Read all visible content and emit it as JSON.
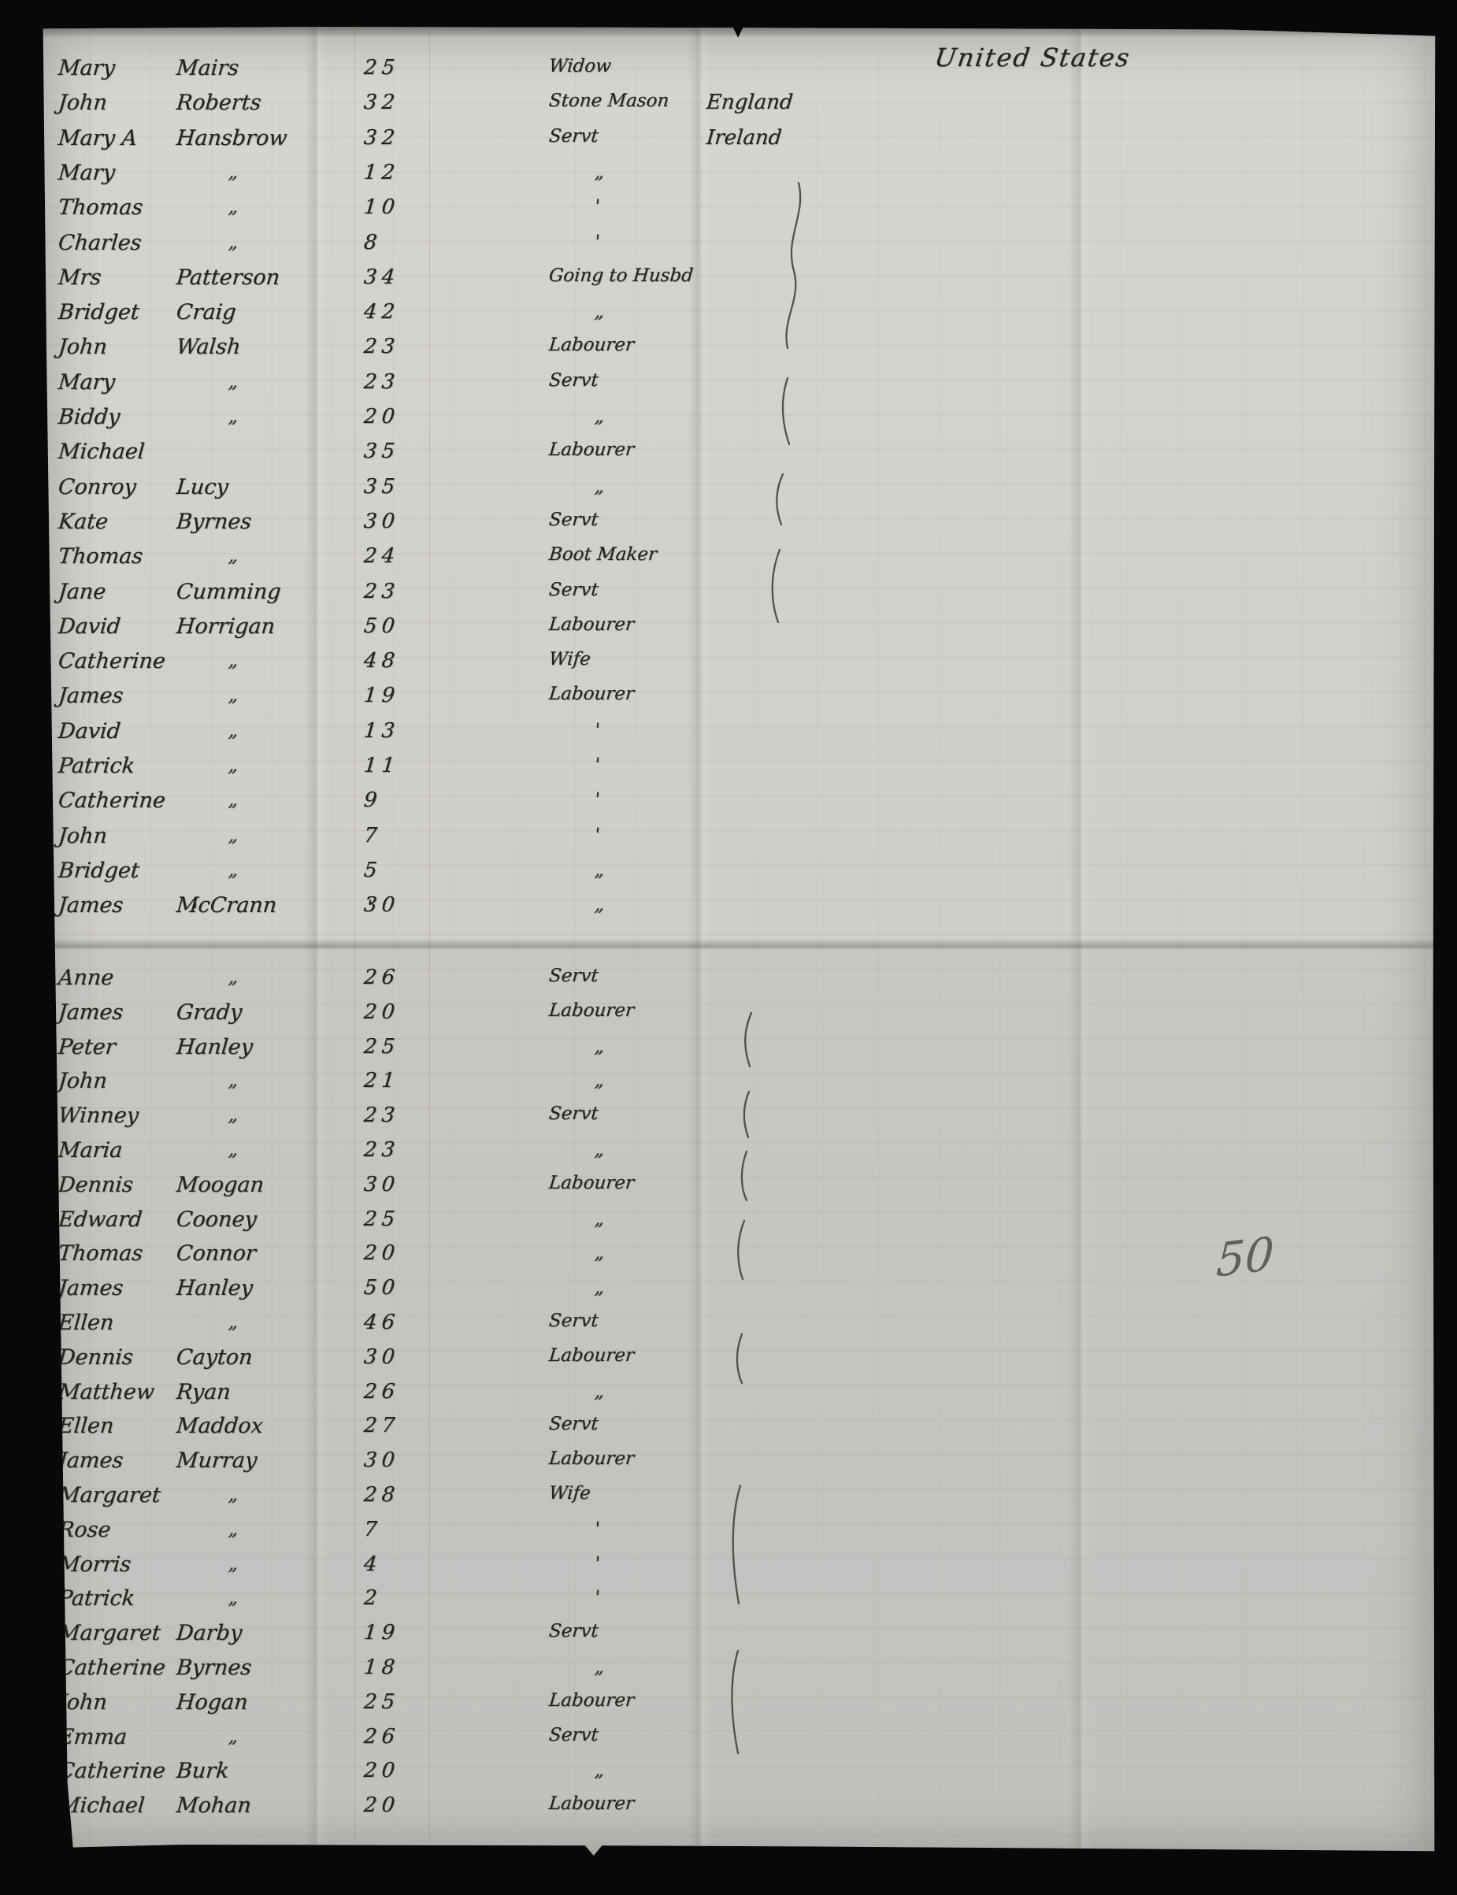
{
  "header": {
    "destination_note": "United States"
  },
  "margin_note": "50",
  "stray_marks": [
    "'",
    "'"
  ],
  "sections": [
    {
      "rows": [
        {
          "given": "Mary",
          "surname": "Mairs",
          "age": "25",
          "occupation": "Widow",
          "country": ""
        },
        {
          "given": "John",
          "surname": "Roberts",
          "age": "32",
          "occupation": "Stone Mason",
          "country": "England"
        },
        {
          "given": "Mary A",
          "surname": "Hansbrow",
          "age": "32",
          "occupation": "Servt",
          "country": "Ireland"
        },
        {
          "given": "Mary",
          "surname": "„",
          "age": "12",
          "occupation": "„",
          "country": ""
        },
        {
          "given": "Thomas",
          "surname": "„",
          "age": "10",
          "occupation": "'",
          "country": ""
        },
        {
          "given": "Charles",
          "surname": "„",
          "age": "8",
          "occupation": "'",
          "country": ""
        },
        {
          "given": "Mrs",
          "surname": "Patterson",
          "age": "34",
          "occupation": "Going to Husbd",
          "country": ""
        },
        {
          "given": "Bridget",
          "surname": "Craig",
          "age": "42",
          "occupation": "„",
          "country": ""
        },
        {
          "given": "John",
          "surname": "Walsh",
          "age": "23",
          "occupation": "Labourer",
          "country": ""
        },
        {
          "given": "Mary",
          "surname": "„",
          "age": "23",
          "occupation": "Servt",
          "country": ""
        },
        {
          "given": "Biddy",
          "surname": "„",
          "age": "20",
          "occupation": "„",
          "country": ""
        },
        {
          "given": "Michael",
          "surname": "",
          "age": "35",
          "occupation": "Labourer",
          "country": ""
        },
        {
          "given": "Conroy",
          "surname": "Lucy",
          "age": "35",
          "occupation": "„",
          "country": ""
        },
        {
          "given": "Kate",
          "surname": "Byrnes",
          "age": "30",
          "occupation": "Servt",
          "country": ""
        },
        {
          "given": "Thomas",
          "surname": "„",
          "age": "24",
          "occupation": "Boot Maker",
          "country": ""
        },
        {
          "given": "Jane",
          "surname": "Cumming",
          "age": "23",
          "occupation": "Servt",
          "country": ""
        },
        {
          "given": "David",
          "surname": "Horrigan",
          "age": "50",
          "occupation": "Labourer",
          "country": ""
        },
        {
          "given": "Catherine",
          "surname": "„",
          "age": "48",
          "occupation": "Wife",
          "country": ""
        },
        {
          "given": "James",
          "surname": "„",
          "age": "19",
          "occupation": "Labourer",
          "country": ""
        },
        {
          "given": "David",
          "surname": "„",
          "age": "13",
          "occupation": "'",
          "country": ""
        },
        {
          "given": "Patrick",
          "surname": "„",
          "age": "11",
          "occupation": "'",
          "country": ""
        },
        {
          "given": "Catherine",
          "surname": "„",
          "age": "9",
          "occupation": "'",
          "country": ""
        },
        {
          "given": "John",
          "surname": "„",
          "age": "7",
          "occupation": "'",
          "country": ""
        },
        {
          "given": "Bridget",
          "surname": "„",
          "age": "5",
          "occupation": "„",
          "country": ""
        },
        {
          "given": "James",
          "surname": "McCrann",
          "age": "30",
          "occupation": "„",
          "country": ""
        }
      ]
    },
    {
      "rows": [
        {
          "given": "Anne",
          "surname": "„",
          "age": "26",
          "occupation": "Servt",
          "country": ""
        },
        {
          "given": "James",
          "surname": "Grady",
          "age": "20",
          "occupation": "Labourer",
          "country": ""
        },
        {
          "given": "Peter",
          "surname": "Hanley",
          "age": "25",
          "occupation": "„",
          "country": ""
        },
        {
          "given": "John",
          "surname": "„",
          "age": "21",
          "occupation": "„",
          "country": ""
        },
        {
          "given": "Winney",
          "surname": "„",
          "age": "23",
          "occupation": "Servt",
          "country": ""
        },
        {
          "given": "Maria",
          "surname": "„",
          "age": "23",
          "occupation": "„",
          "country": ""
        },
        {
          "given": "Dennis",
          "surname": "Moogan",
          "age": "30",
          "occupation": "Labourer",
          "country": ""
        },
        {
          "given": "Edward",
          "surname": "Cooney",
          "age": "25",
          "occupation": "„",
          "country": ""
        },
        {
          "given": "Thomas",
          "surname": "Connor",
          "age": "20",
          "occupation": "„",
          "country": ""
        },
        {
          "given": "James",
          "surname": "Hanley",
          "age": "50",
          "occupation": "„",
          "country": ""
        },
        {
          "given": "Ellen",
          "surname": "„",
          "age": "46",
          "occupation": "Servt",
          "country": ""
        },
        {
          "given": "Dennis",
          "surname": "Cayton",
          "age": "30",
          "occupation": "Labourer",
          "country": ""
        },
        {
          "given": "Matthew",
          "surname": "Ryan",
          "age": "26",
          "occupation": "„",
          "country": ""
        },
        {
          "given": "Ellen",
          "surname": "Maddox",
          "age": "27",
          "occupation": "Servt",
          "country": ""
        },
        {
          "given": "James",
          "surname": "Murray",
          "age": "30",
          "occupation": "Labourer",
          "country": ""
        },
        {
          "given": "Margaret",
          "surname": "„",
          "age": "28",
          "occupation": "Wife",
          "country": ""
        },
        {
          "given": "Rose",
          "surname": "„",
          "age": "7",
          "occupation": "'",
          "country": ""
        },
        {
          "given": "Morris",
          "surname": "„",
          "age": "4",
          "occupation": "'",
          "country": ""
        },
        {
          "given": "Patrick",
          "surname": "„",
          "age": "2",
          "occupation": "'",
          "country": ""
        },
        {
          "given": "Margaret",
          "surname": "Darby",
          "age": "19",
          "occupation": "Servt",
          "country": ""
        },
        {
          "given": "Catherine",
          "surname": "Byrnes",
          "age": "18",
          "occupation": "„",
          "country": ""
        },
        {
          "given": "John",
          "surname": "Hogan",
          "age": "25",
          "occupation": "Labourer",
          "country": ""
        },
        {
          "given": "Emma",
          "surname": "„",
          "age": "26",
          "occupation": "Servt",
          "country": ""
        },
        {
          "given": "Catherine",
          "surname": "Burk",
          "age": "20",
          "occupation": "„",
          "country": ""
        },
        {
          "given": "Michael",
          "surname": "Mohan",
          "age": "20",
          "occupation": "Labourer",
          "country": ""
        }
      ]
    }
  ]
}
